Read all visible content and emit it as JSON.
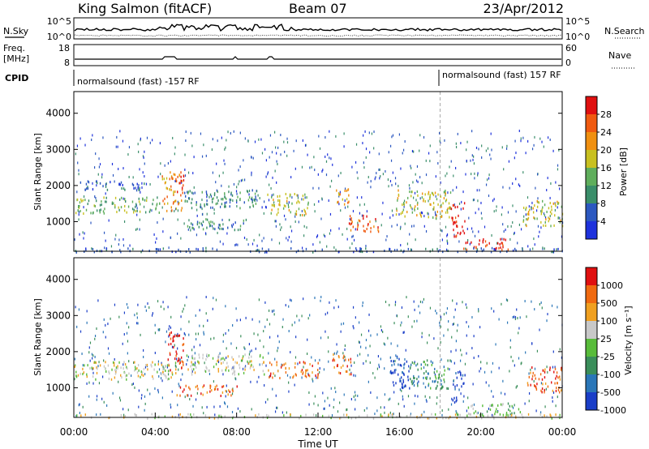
{
  "header": {
    "station": "King Salmon (fitACF)",
    "beam": "Beam 07",
    "date": "23/Apr/2012"
  },
  "status_panels": {
    "nsky_label": "N.Sky",
    "nsky_ticks": [
      "10^5",
      "10^0"
    ],
    "nsearch_label": "N.Search",
    "nsearch_ticks": [
      "10^5",
      "10^0"
    ],
    "freq_label_1": "Freq.",
    "freq_label_2": "[MHz]",
    "freq_ticks": [
      "18",
      "8"
    ],
    "nave_label": "Nave",
    "nave_ticks": [
      "60",
      "0"
    ],
    "cpid_label": "CPID",
    "cpid_segments": [
      {
        "text": "normalsound (fast) -157 RF",
        "start_hour": 0
      },
      {
        "text": "normalsound (fast) 157 RF",
        "start_hour": 18
      }
    ]
  },
  "chart_data": [
    {
      "type": "heatmap",
      "name": "power",
      "xlabel": "Time UT",
      "ylabel": "Slant Range [km]",
      "xlim_hours": [
        0,
        24
      ],
      "ylim_km": [
        180,
        4600
      ],
      "y_ticks": [
        1000,
        2000,
        3000,
        4000
      ],
      "colorbar": {
        "label": "Power [dB]",
        "ticks": [
          "28",
          "24",
          "20",
          "16",
          "12",
          "8",
          "4"
        ],
        "colors": [
          "#1e32dc",
          "#2c58c0",
          "#3a8e6a",
          "#5fae5c",
          "#c8c020",
          "#f09010",
          "#f05a10",
          "#e01010"
        ]
      },
      "regions": [
        {
          "t0": 0.0,
          "t1": 4.2,
          "r0": 1250,
          "r1": 1700,
          "level": 3
        },
        {
          "t0": 0.0,
          "t1": 3.5,
          "r0": 1900,
          "r1": 2150,
          "level": 1
        },
        {
          "t0": 4.3,
          "t1": 5.3,
          "r0": 1300,
          "r1": 2400,
          "level": 5
        },
        {
          "t0": 5.0,
          "t1": 5.4,
          "r0": 1700,
          "r1": 2400,
          "level": 7
        },
        {
          "t0": 5.4,
          "t1": 9.0,
          "r0": 1400,
          "r1": 1900,
          "level": 2
        },
        {
          "t0": 5.5,
          "t1": 8.5,
          "r0": 800,
          "r1": 1100,
          "level": 2
        },
        {
          "t0": 9.5,
          "t1": 11.5,
          "r0": 1200,
          "r1": 1800,
          "level": 4
        },
        {
          "t0": 12.8,
          "t1": 13.5,
          "r0": 1500,
          "r1": 2000,
          "level": 5
        },
        {
          "t0": 13.5,
          "t1": 15.0,
          "r0": 750,
          "r1": 1200,
          "level": 6
        },
        {
          "t0": 15.8,
          "t1": 18.5,
          "r0": 1100,
          "r1": 1900,
          "level": 4
        },
        {
          "t0": 18.5,
          "t1": 19.2,
          "r0": 600,
          "r1": 1600,
          "level": 7
        },
        {
          "t0": 19.0,
          "t1": 21.5,
          "r0": 250,
          "r1": 550,
          "level": 7
        },
        {
          "t0": 22.0,
          "t1": 24.0,
          "r0": 900,
          "r1": 1600,
          "level": 4
        },
        {
          "t0": 0.0,
          "t1": 24.0,
          "r0": 180,
          "r1": 300,
          "level": 1
        }
      ]
    },
    {
      "type": "heatmap",
      "name": "velocity",
      "xlabel": "Time UT",
      "ylabel": "Slant Range [km]",
      "xlim_hours": [
        0,
        24
      ],
      "ylim_km": [
        180,
        4600
      ],
      "y_ticks": [
        1000,
        2000,
        3000,
        4000
      ],
      "colorbar": {
        "label": "Velocity [m s⁻¹]",
        "ticks": [
          "1000",
          "500",
          "100",
          "25",
          "-25",
          "-100",
          "-500",
          "-1000"
        ],
        "colors": [
          "#1a3ec8",
          "#2a76b8",
          "#3a8e5a",
          "#58bc3a",
          "#c8c8c8",
          "#f0a020",
          "#f06a10",
          "#e01010"
        ]
      },
      "regions": [
        {
          "t0": 0.0,
          "t1": 5.0,
          "r0": 1250,
          "r1": 1750,
          "level": 4
        },
        {
          "t0": 5.5,
          "t1": 9.5,
          "r0": 1400,
          "r1": 1950,
          "level": 4
        },
        {
          "t0": 4.6,
          "t1": 5.4,
          "r0": 1500,
          "r1": 2600,
          "level": 7
        },
        {
          "t0": 5.0,
          "t1": 8.0,
          "r0": 800,
          "r1": 1100,
          "level": 6
        },
        {
          "t0": 9.5,
          "t1": 12.0,
          "r0": 1300,
          "r1": 1750,
          "level": 6
        },
        {
          "t0": 12.7,
          "t1": 13.6,
          "r0": 1400,
          "r1": 2000,
          "level": 6
        },
        {
          "t0": 15.5,
          "t1": 16.5,
          "r0": 1000,
          "r1": 1900,
          "level": 0
        },
        {
          "t0": 16.5,
          "t1": 18.5,
          "r0": 1000,
          "r1": 1800,
          "level": 2
        },
        {
          "t0": 18.6,
          "t1": 19.2,
          "r0": 600,
          "r1": 1500,
          "level": 0
        },
        {
          "t0": 19.3,
          "t1": 22.0,
          "r0": 250,
          "r1": 600,
          "level": 3
        },
        {
          "t0": 22.2,
          "t1": 24.0,
          "r0": 900,
          "r1": 1600,
          "level": 6
        },
        {
          "t0": 0.0,
          "t1": 24.0,
          "r0": 180,
          "r1": 300,
          "level": 4
        }
      ]
    }
  ],
  "x_axis": {
    "ticks": [
      "00:00",
      "04:00",
      "08:00",
      "12:00",
      "16:00",
      "20:00",
      "00:00"
    ],
    "label": "Time UT"
  }
}
